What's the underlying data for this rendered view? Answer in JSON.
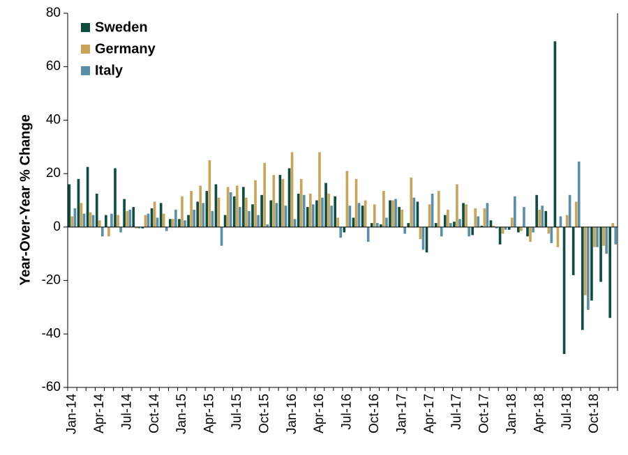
{
  "chart_data": {
    "type": "bar",
    "ylabel": "Year-Over-Year  % Change",
    "ylim": [
      -60,
      80
    ],
    "yticks": [
      -60,
      -40,
      -20,
      0,
      20,
      40,
      60,
      80
    ],
    "legend_position": "top-left",
    "grid": false,
    "categories": [
      "Jan-14",
      "Feb-14",
      "Mar-14",
      "Apr-14",
      "May-14",
      "Jun-14",
      "Jul-14",
      "Aug-14",
      "Sep-14",
      "Oct-14",
      "Nov-14",
      "Dec-14",
      "Jan-15",
      "Feb-15",
      "Mar-15",
      "Apr-15",
      "May-15",
      "Jun-15",
      "Jul-15",
      "Aug-15",
      "Sep-15",
      "Oct-15",
      "Nov-15",
      "Dec-15",
      "Jan-16",
      "Feb-16",
      "Mar-16",
      "Apr-16",
      "May-16",
      "Jun-16",
      "Jul-16",
      "Aug-16",
      "Sep-16",
      "Oct-16",
      "Nov-16",
      "Dec-16",
      "Jan-17",
      "Feb-17",
      "Mar-17",
      "Apr-17",
      "May-17",
      "Jun-17",
      "Jul-17",
      "Aug-17",
      "Sep-17",
      "Oct-17",
      "Nov-17",
      "Dec-17",
      "Jan-18",
      "Feb-18",
      "Mar-18",
      "Apr-18",
      "May-18",
      "Jun-18",
      "Jul-18",
      "Aug-18",
      "Sep-18",
      "Oct-18",
      "Nov-18",
      "Dec-18"
    ],
    "xtick_labels": [
      "Jan-14",
      "Apr-14",
      "Jul-14",
      "Oct-14",
      "Jan-15",
      "Apr-15",
      "Jul-15",
      "Oct-15",
      "Jan-16",
      "Apr-16",
      "Jul-16",
      "Oct-16",
      "Jan-17",
      "Apr-17",
      "Jul-17",
      "Oct-17",
      "Jan-18",
      "Apr-18",
      "Jul-18",
      "Oct-18"
    ],
    "series": [
      {
        "name": "Sweden",
        "color": "#0e4d3f",
        "values": [
          16,
          18,
          22.5,
          12.5,
          4.5,
          22,
          10.5,
          7.5,
          -0.5,
          7,
          9,
          3,
          3,
          4.5,
          9.5,
          13.5,
          16,
          4.5,
          11.5,
          15,
          8.5,
          12,
          10,
          19.5,
          22,
          12.5,
          7.5,
          10,
          16.5,
          11.5,
          -2,
          3.5,
          8,
          1.5,
          1,
          10,
          7.5,
          1.5,
          9.5,
          -9.5,
          1.5,
          4.5,
          2,
          9,
          -3,
          0.5,
          2.5,
          -6.5,
          -1,
          -2,
          -3.5,
          12,
          6,
          69.5,
          -47.5,
          -18,
          -38.5,
          -27.5,
          -20.5,
          -34
        ]
      },
      {
        "name": "Germany",
        "color": "#c9a55a",
        "values": [
          4,
          9,
          5.5,
          2.5,
          -3.5,
          4.5,
          6,
          -0.5,
          4.5,
          9.5,
          5,
          3,
          11.5,
          13.5,
          15.5,
          25,
          11,
          15,
          15.5,
          11,
          17.5,
          24,
          19.5,
          18,
          28,
          18,
          12.5,
          28,
          12.5,
          3.5,
          21,
          18,
          10,
          8.5,
          13.5,
          10,
          6.5,
          18.5,
          -4.5,
          8.5,
          13.5,
          6.5,
          16,
          8.5,
          7,
          7,
          0.5,
          -2.5,
          3.5,
          -1.5,
          -5.5,
          6.5,
          -2.5,
          -7.5,
          4.5,
          9.5,
          -25.5,
          -7.5,
          -7,
          1.5
        ]
      },
      {
        "name": "Italy",
        "color": "#5b8ea8",
        "values": [
          7,
          5,
          4.5,
          -3.5,
          5,
          -2,
          6.5,
          -0.5,
          5,
          3.5,
          -1.5,
          6.5,
          2.5,
          6.5,
          9,
          6,
          -7,
          13,
          7.5,
          6,
          4.5,
          1,
          9,
          8,
          3,
          12,
          8.5,
          11,
          8,
          -4,
          8,
          9,
          -5.5,
          1.5,
          3.5,
          10.5,
          -2.5,
          11,
          -8.5,
          12.5,
          -3.5,
          1.5,
          3,
          -3.5,
          4,
          9,
          -0.5,
          -1,
          11.5,
          7.5,
          -2,
          8,
          -6,
          4,
          12,
          24.5,
          -31,
          -7.5,
          -10,
          -6.5
        ]
      }
    ]
  }
}
